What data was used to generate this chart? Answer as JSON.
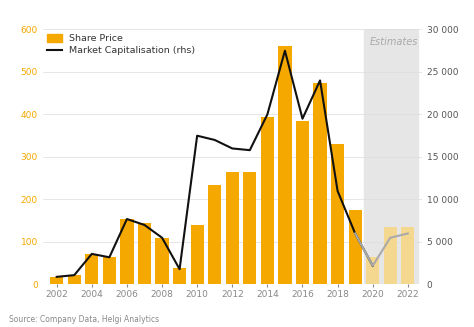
{
  "years": [
    2002,
    2003,
    2004,
    2005,
    2006,
    2007,
    2008,
    2009,
    2010,
    2011,
    2012,
    2013,
    2014,
    2015,
    2016,
    2017,
    2018,
    2019,
    2020,
    2021,
    2022
  ],
  "share_price": [
    18,
    22,
    72,
    65,
    155,
    145,
    110,
    38,
    140,
    235,
    265,
    265,
    395,
    560,
    385,
    475,
    330,
    175,
    65,
    135,
    135
  ],
  "market_cap": [
    900,
    1100,
    3600,
    3200,
    7700,
    7000,
    5500,
    1800,
    17500,
    17000,
    16000,
    15800,
    20000,
    27500,
    19500,
    24000,
    11000,
    6000,
    2200,
    5500,
    6000
  ],
  "bar_color_solid": "#f5a800",
  "bar_color_estimate": "#f5d890",
  "line_color_solid": "#111111",
  "line_color_estimate": "#aaaaaa",
  "estimate_start_year": 2020,
  "estimates_bg_color": "#e6e6e6",
  "ylim_left": [
    0,
    600
  ],
  "ylim_right": [
    0,
    30000
  ],
  "yticks_left": [
    0,
    100,
    200,
    300,
    400,
    500,
    600
  ],
  "yticks_right": [
    0,
    5000,
    10000,
    15000,
    20000,
    25000,
    30000
  ],
  "ytick_labels_right": [
    "0",
    "5 000",
    "10 000",
    "15 000",
    "20 000",
    "25 000",
    "30 000"
  ],
  "xtick_years": [
    2002,
    2004,
    2006,
    2008,
    2010,
    2012,
    2014,
    2016,
    2018,
    2020,
    2022
  ],
  "legend_share_price": "Share Price",
  "legend_market_cap": "Market Capitalisation (rhs)",
  "estimates_label": "Estimates",
  "source_text": "Source: Company Data, Helgi Analytics",
  "background_color": "#ffffff",
  "grid_color": "#dddddd",
  "left_tick_color": "#f5a800",
  "right_tick_color": "#555555",
  "xtick_color": "#888888",
  "bar_width": 0.75
}
